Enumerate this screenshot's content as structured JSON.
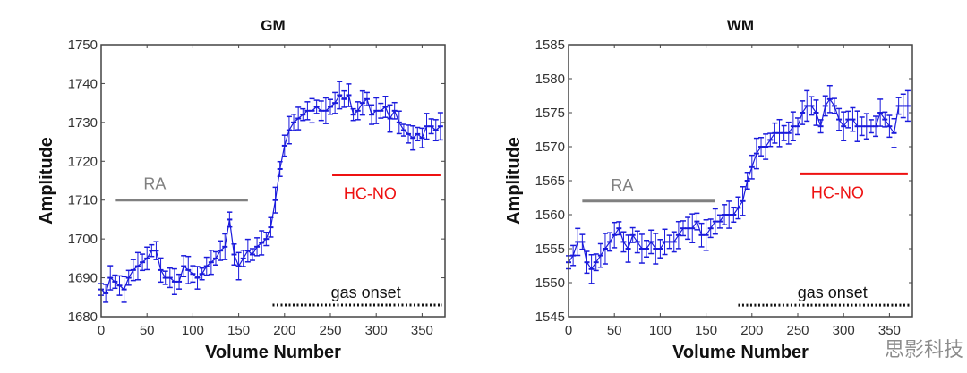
{
  "chart_data": [
    {
      "type": "line",
      "title": "GM",
      "xlabel": "Volume Number",
      "ylabel": "Amplitude",
      "xlim": [
        0,
        375
      ],
      "ylim": [
        1680,
        1750
      ],
      "xticks": [
        0,
        50,
        100,
        150,
        200,
        250,
        300,
        350
      ],
      "yticks": [
        1680,
        1690,
        1700,
        1710,
        1720,
        1730,
        1740,
        1750
      ],
      "grid": false,
      "error_bars": true,
      "error": 2.5,
      "series_color": "#1a1adc",
      "x": [
        0,
        5,
        10,
        15,
        20,
        25,
        30,
        35,
        40,
        45,
        50,
        55,
        60,
        65,
        70,
        75,
        80,
        85,
        90,
        95,
        100,
        105,
        110,
        115,
        120,
        125,
        130,
        135,
        140,
        145,
        150,
        155,
        160,
        165,
        170,
        175,
        180,
        185,
        190,
        195,
        200,
        205,
        210,
        215,
        220,
        225,
        230,
        235,
        240,
        245,
        250,
        255,
        260,
        265,
        270,
        275,
        280,
        285,
        290,
        295,
        300,
        305,
        310,
        315,
        320,
        325,
        330,
        335,
        340,
        345,
        350,
        355,
        360,
        365,
        370
      ],
      "values": [
        1687,
        1686,
        1690,
        1689,
        1688,
        1687,
        1690,
        1692,
        1693,
        1694,
        1695,
        1697,
        1697,
        1692,
        1690,
        1690,
        1689,
        1689,
        1693,
        1692,
        1691,
        1690,
        1691,
        1693,
        1694,
        1695,
        1697,
        1698,
        1705,
        1696,
        1693,
        1695,
        1697,
        1696,
        1698,
        1699,
        1700,
        1703,
        1710,
        1718,
        1724,
        1728,
        1730,
        1731,
        1732,
        1733,
        1733,
        1734,
        1733,
        1733,
        1734,
        1735,
        1737,
        1736,
        1737,
        1732,
        1733,
        1735,
        1736,
        1732,
        1733,
        1733,
        1734,
        1731,
        1733,
        1730,
        1728,
        1727,
        1726,
        1727,
        1726,
        1729,
        1729,
        1728,
        1729
      ],
      "annotations": [
        {
          "label": "RA",
          "color": "#808080",
          "x_range": [
            15,
            160
          ],
          "y": 1710,
          "style": "solid"
        },
        {
          "label": "HC-NO",
          "color": "#ee1111",
          "x_range": [
            252,
            370
          ],
          "y": 1716.5,
          "style": "solid"
        },
        {
          "label": "gas onset",
          "color": "#111111",
          "x_range": [
            187,
            372
          ],
          "y": 1683,
          "style": "dotted"
        }
      ]
    },
    {
      "type": "line",
      "title": "WM",
      "xlabel": "Volume Number",
      "ylabel": "Amplitude",
      "xlim": [
        0,
        375
      ],
      "ylim": [
        1545,
        1585
      ],
      "xticks": [
        0,
        50,
        100,
        150,
        200,
        250,
        300,
        350
      ],
      "yticks": [
        1545,
        1550,
        1555,
        1560,
        1565,
        1570,
        1575,
        1580,
        1585
      ],
      "grid": false,
      "error_bars": true,
      "error": 1.6,
      "series_color": "#1a1adc",
      "x": [
        0,
        5,
        10,
        15,
        20,
        25,
        30,
        35,
        40,
        45,
        50,
        55,
        60,
        65,
        70,
        75,
        80,
        85,
        90,
        95,
        100,
        105,
        110,
        115,
        120,
        125,
        130,
        135,
        140,
        145,
        150,
        155,
        160,
        165,
        170,
        175,
        180,
        185,
        190,
        195,
        200,
        205,
        210,
        215,
        220,
        225,
        230,
        235,
        240,
        245,
        250,
        255,
        260,
        265,
        270,
        275,
        280,
        285,
        290,
        295,
        300,
        305,
        310,
        315,
        320,
        325,
        330,
        335,
        340,
        345,
        350,
        355,
        360,
        365,
        370
      ],
      "values": [
        1553,
        1554,
        1556,
        1556,
        1553,
        1552,
        1553,
        1554,
        1555,
        1556,
        1557,
        1558,
        1556,
        1555,
        1557,
        1556,
        1555,
        1555,
        1556,
        1555,
        1555,
        1556,
        1556,
        1556,
        1557,
        1558,
        1558,
        1558,
        1559,
        1557,
        1557,
        1558,
        1559,
        1559,
        1560,
        1560,
        1560,
        1561,
        1562,
        1565,
        1567,
        1569,
        1570,
        1570,
        1571,
        1572,
        1572,
        1572,
        1572,
        1573,
        1573,
        1575,
        1576,
        1576,
        1575,
        1573,
        1576,
        1577,
        1576,
        1574,
        1573,
        1574,
        1574,
        1573,
        1573,
        1573,
        1573,
        1573,
        1575,
        1574,
        1573,
        1572,
        1576,
        1576,
        1576
      ],
      "annotations": [
        {
          "label": "RA",
          "color": "#808080",
          "x_range": [
            15,
            160
          ],
          "y": 1562,
          "style": "solid"
        },
        {
          "label": "HC-NO",
          "color": "#ee1111",
          "x_range": [
            252,
            370
          ],
          "y": 1566,
          "style": "solid"
        },
        {
          "label": "gas onset",
          "color": "#111111",
          "x_range": [
            185,
            372
          ],
          "y": 1546.7,
          "style": "dotted"
        }
      ]
    }
  ],
  "watermark": "思影科技"
}
